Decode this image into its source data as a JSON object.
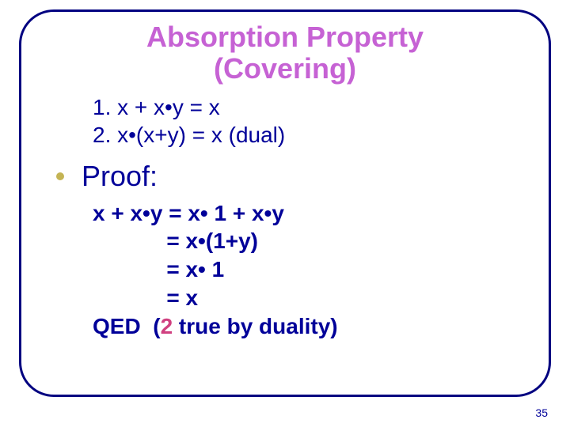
{
  "title": {
    "line1": "Absorption Property",
    "line2": "(Covering)",
    "color": "#c662d4",
    "fontsize": 36
  },
  "equations": {
    "items": [
      "1.  x + x•y = x",
      "2.  x•(x+y) = x (dual)"
    ],
    "color": "#000099",
    "fontsize": 28
  },
  "proof_header": {
    "label": "Proof:",
    "color": "#000099",
    "fontsize": 36,
    "bullet_color": "#c4b454"
  },
  "proof": {
    "color": "#000099",
    "fontsize": 28,
    "steps": [
      "x + x•y = x• 1 + x•y",
      "            = x•(1+y)",
      "            = x• 1",
      "            = x"
    ],
    "qed_prefix": "QED  (",
    "qed_two": "2",
    "qed_suffix": " true by duality)",
    "qed_two_color": "#d04080"
  },
  "page_number": {
    "value": "35",
    "color": "#000099",
    "fontsize": 14
  },
  "frame_border_color": "#000080"
}
